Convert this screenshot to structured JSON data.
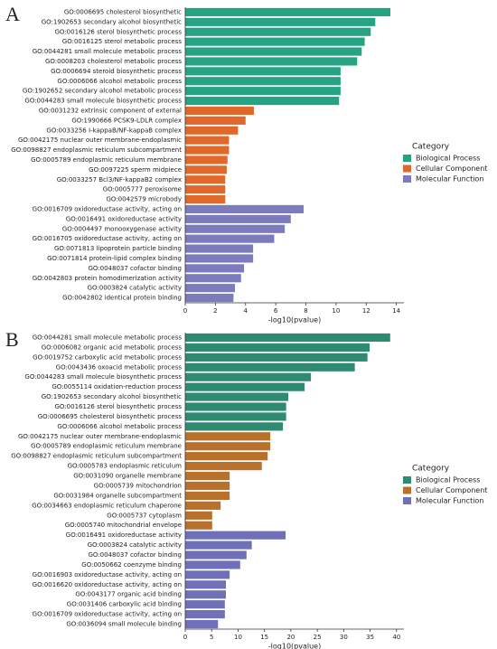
{
  "chart_data": [
    {
      "type": "bar",
      "orientation": "horizontal",
      "panel": "A",
      "x_label": "-log10(pvalue)",
      "legend_title": "Category",
      "legend": "right",
      "xlim": [
        0,
        14.5
      ],
      "xticks": [
        0,
        2,
        4,
        6,
        8,
        10,
        12,
        14
      ],
      "categories": [
        "GO:0006695 cholesterol biosynthetic",
        "GO:1902653 secondary alcohol biosynthetic",
        "GO:0016126 sterol biosynthetic process",
        "GO:0016125 sterol metabolic process",
        "GO:0044281 small molecule metabolic process",
        "GO:0008203 cholesterol metabolic process",
        "GO:0006694 steroid biosynthetic process",
        "GO:0006066 alcohol metabolic process",
        "GO:1902652 secondary alcohol metabolic process",
        "GO:0044283 small molecule biosynthetic process",
        "GO:0031232 extrinsic component of external",
        "GO:1990666 PCSK9-LDLR complex",
        "GO:0033256 I-kappaB/NF-kappaB complex",
        "GO:0042175 nuclear outer membrane-endoplasmic",
        "GO:0098827 endoplasmic reticulum subcompartment",
        "GO:0005789 endoplasmic reticulum membrane",
        "GO:0097225 sperm midpiece",
        "GO:0033257 Bcl3/NF-kappaB2 complex",
        "GO:0005777 peroxisome",
        "GO:0042579 microbody",
        "GO:0016709 oxidoreductase activity, acting on",
        "GO:0016491 oxidoreductase activity",
        "GO:0004497 monooxygenase activity",
        "GO:0016705 oxidoreductase activity, acting on",
        "GO:0071813 lipoprotein particle binding",
        "GO:0071814 protein-lipid complex binding",
        "GO:0048037 cofactor binding",
        "GO:0042803 protein homodimerization activity",
        "GO:0003824 catalytic activity",
        "GO:0042802 identical protein binding"
      ],
      "series": [
        {
          "name": "Biological Process",
          "color": "#26a383",
          "values": [
            13.6,
            12.6,
            12.3,
            11.9,
            11.7,
            11.4,
            10.3,
            10.3,
            10.3,
            10.2,
            null,
            null,
            null,
            null,
            null,
            null,
            null,
            null,
            null,
            null,
            null,
            null,
            null,
            null,
            null,
            null,
            null,
            null,
            null,
            null
          ]
        },
        {
          "name": "Cellular Component",
          "color": "#e0682a",
          "values": [
            null,
            null,
            null,
            null,
            null,
            null,
            null,
            null,
            null,
            null,
            4.55,
            4.0,
            3.5,
            2.9,
            2.9,
            2.8,
            2.75,
            2.65,
            2.65,
            2.65,
            null,
            null,
            null,
            null,
            null,
            null,
            null,
            null,
            null,
            null
          ]
        },
        {
          "name": "Molecular Function",
          "color": "#7b7bbd",
          "values": [
            null,
            null,
            null,
            null,
            null,
            null,
            null,
            null,
            null,
            null,
            null,
            null,
            null,
            null,
            null,
            null,
            null,
            null,
            null,
            null,
            7.85,
            7.0,
            6.6,
            5.9,
            4.5,
            4.5,
            3.9,
            3.7,
            3.3,
            3.2
          ]
        }
      ]
    },
    {
      "type": "bar",
      "orientation": "horizontal",
      "panel": "B",
      "x_label": "-log10(pvalue)",
      "legend_title": "Category",
      "legend": "right",
      "xlim": [
        0,
        41.4
      ],
      "xticks": [
        0,
        5,
        10,
        15,
        20,
        25,
        30,
        35,
        40
      ],
      "categories": [
        "GO:0044281 small molecule metabolic process",
        "GO:0006082 organic acid metabolic process",
        "GO:0019752 carboxylic acid metabolic process",
        "GO:0043436 oxoacid metabolic process",
        "GO:0044283 small molecule biosynthetic process",
        "GO:0055114 oxidation-reduction process",
        "GO:1902653 secondary alcohol biosynthetic",
        "GO:0016126 sterol biosynthetic process",
        "GO:0006695 cholesterol biosynthetic process",
        "GO:0006066 alcohol metabolic process",
        "GO:0042175 nuclear outer membrane-endoplasmic",
        "GO:0005789 endoplasmic reticulum membrane",
        "GO:0098827 endoplasmic reticulum subcompartment",
        "GO:0005783 endoplasmic reticulum",
        "GO:0031090 organelle membrane",
        "GO:0005739 mitochondrion",
        "GO:0031984 organelle subcompartment",
        "GO:0034663 endoplasmic reticulum chaperone",
        "GO:0005737 cytoplasm",
        "GO:0005740 mitochondrial envelope",
        "GO:0016491 oxidoreductase activity",
        "GO:0003824 catalytic activity",
        "GO:0048037 cofactor binding",
        "GO:0050662 coenzyme binding",
        "GO:0016903 oxidoreductase activity, acting on",
        "GO:0016620 oxidoreductase activity, acting on",
        "GO:0043177 organic acid binding",
        "GO:0031406 carboxylic acid binding",
        "GO:0016709 oxidoreductase activity, acting on",
        "GO:0036094 small molecule binding"
      ],
      "series": [
        {
          "name": "Biological Process",
          "color": "#2e8b72",
          "values": [
            38.8,
            34.9,
            34.5,
            32.1,
            23.8,
            22.6,
            19.5,
            19.1,
            19.1,
            18.5,
            null,
            null,
            null,
            null,
            null,
            null,
            null,
            null,
            null,
            null,
            null,
            null,
            null,
            null,
            null,
            null,
            null,
            null,
            null,
            null
          ]
        },
        {
          "name": "Cellular Component",
          "color": "#b8702a",
          "values": [
            null,
            null,
            null,
            null,
            null,
            null,
            null,
            null,
            null,
            null,
            16.1,
            16.1,
            15.6,
            14.5,
            8.4,
            8.4,
            8.4,
            6.7,
            5.1,
            5.1,
            null,
            null,
            null,
            null,
            null,
            null,
            null,
            null,
            null,
            null
          ]
        },
        {
          "name": "Molecular Function",
          "color": "#7070b8",
          "values": [
            null,
            null,
            null,
            null,
            null,
            null,
            null,
            null,
            null,
            null,
            null,
            null,
            null,
            null,
            null,
            null,
            null,
            null,
            null,
            null,
            19.0,
            12.6,
            11.6,
            10.4,
            8.4,
            7.7,
            7.7,
            7.5,
            7.5,
            6.2
          ]
        }
      ]
    }
  ]
}
